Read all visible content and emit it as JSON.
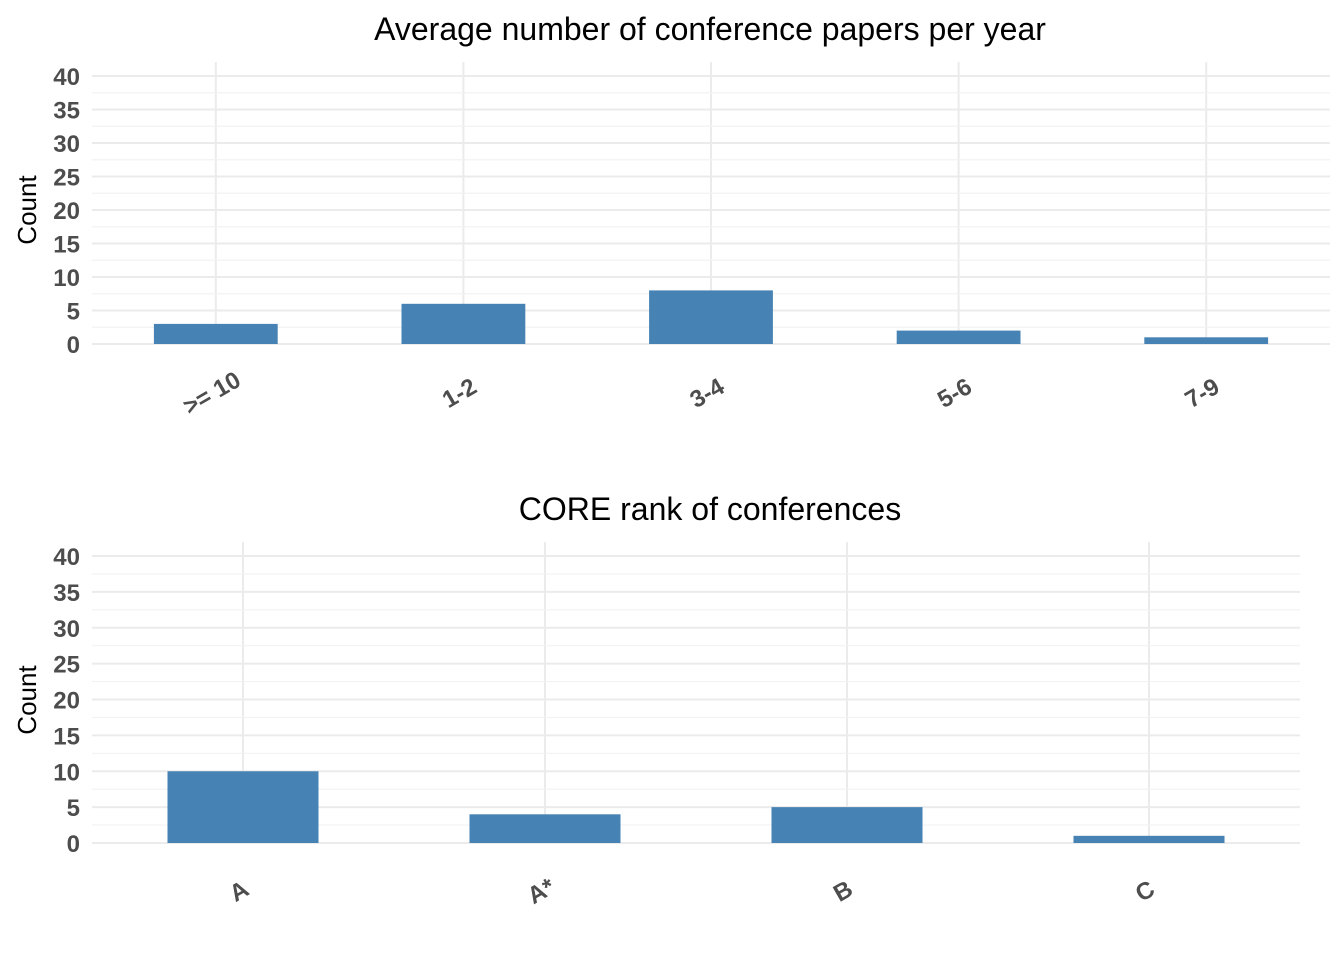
{
  "chart_data": [
    {
      "type": "bar",
      "title": "Average number of conference papers per year",
      "xlabel": "",
      "ylabel": "Count",
      "categories": [
        ">= 10",
        "1-2",
        "3-4",
        "5-6",
        "7-9"
      ],
      "values": [
        3,
        6,
        8,
        2,
        1
      ],
      "ylim": [
        0,
        40
      ],
      "yticks": [
        0,
        5,
        10,
        15,
        20,
        25,
        30,
        35,
        40
      ],
      "grid": true,
      "bar_color": "#4682B4",
      "xtick_rotation": -30
    },
    {
      "type": "bar",
      "title": "CORE rank of conferences",
      "xlabel": "",
      "ylabel": "Count",
      "categories": [
        "A",
        "A*",
        "B",
        "C"
      ],
      "values": [
        10,
        4,
        5,
        1
      ],
      "ylim": [
        0,
        40
      ],
      "yticks": [
        0,
        5,
        10,
        15,
        20,
        25,
        30,
        35,
        40
      ],
      "grid": true,
      "bar_color": "#4682B4",
      "xtick_rotation": -30
    }
  ]
}
